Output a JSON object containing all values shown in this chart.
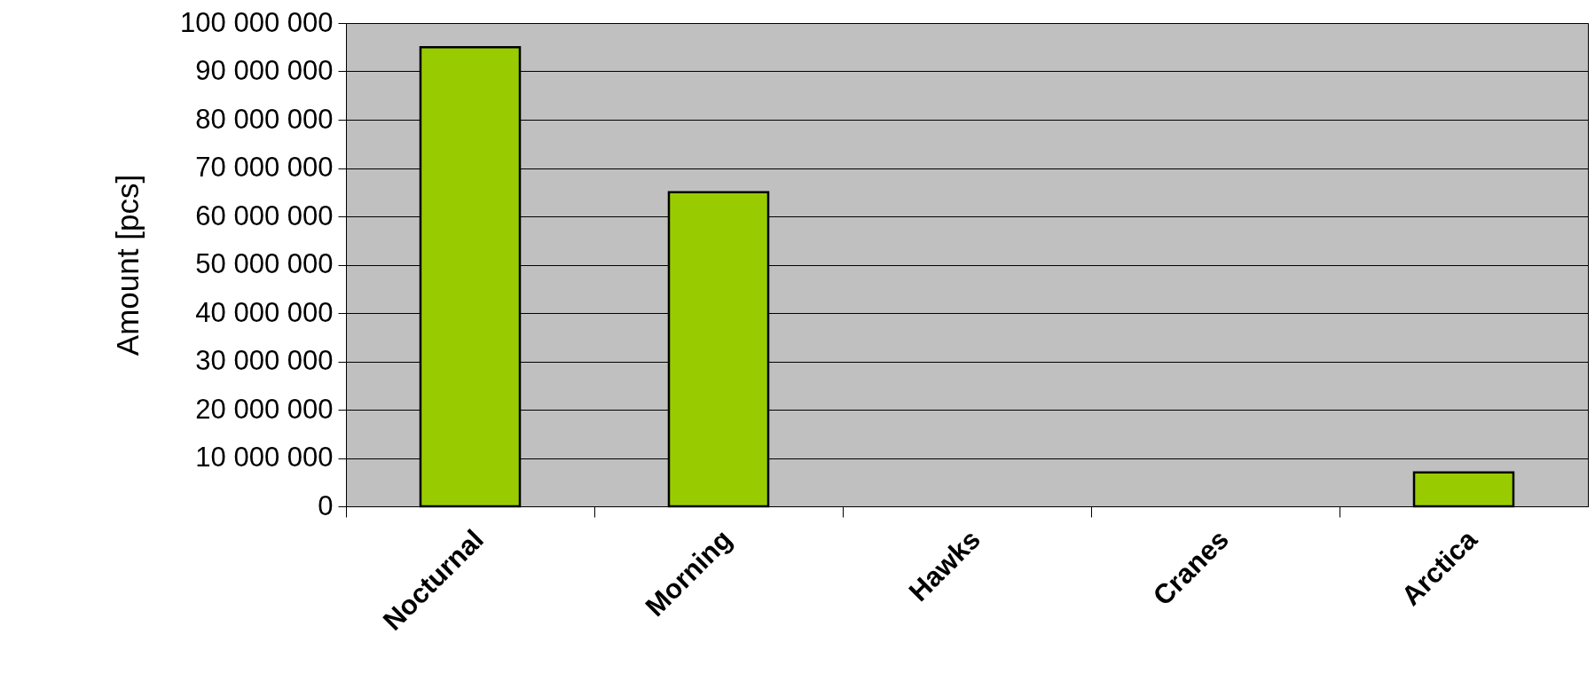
{
  "chart_data": {
    "type": "bar",
    "ylabel": "Amount [pcs]",
    "categories": [
      "Nocturnal",
      "Morning",
      "Hawks",
      "Cranes",
      "Arctica"
    ],
    "values": [
      95000000,
      65000000,
      0,
      0,
      7000000
    ],
    "color": "#99cc00",
    "ylim": [
      0,
      100000000
    ],
    "yticks": [
      0,
      10000000,
      20000000,
      30000000,
      40000000,
      50000000,
      60000000,
      70000000,
      80000000,
      90000000,
      100000000
    ],
    "grid": "y"
  }
}
